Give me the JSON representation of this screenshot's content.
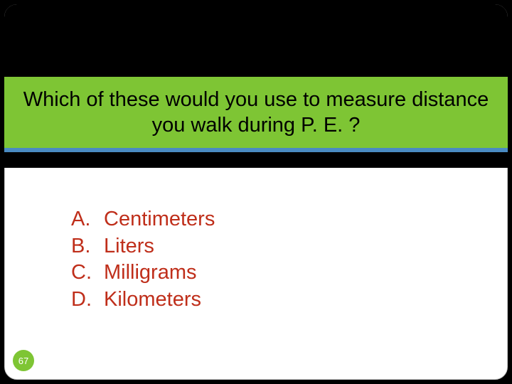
{
  "slide": {
    "background_color": "#000000",
    "frame_border_color": "#cccccc",
    "frame_border_radius": 18,
    "title_band_color": "#7ec534",
    "divider_color": "#4a8bc2",
    "content_area_color": "#ffffff",
    "question": "Which of these would you use to measure distance you walk during P. E. ?",
    "question_color": "#000000",
    "question_fontsize": 29,
    "answers": [
      {
        "letter": "A.",
        "text": "Centimeters"
      },
      {
        "letter": "B.",
        "text": "Liters"
      },
      {
        "letter": "C.",
        "text": "Milligrams"
      },
      {
        "letter": "D.",
        "text": "Kilometers"
      }
    ],
    "answers_color": "#bf2e1a",
    "answers_fontsize": 29,
    "page_number": "67",
    "page_badge_bg": "#7ec534",
    "page_badge_text_color": "#ffffff"
  }
}
